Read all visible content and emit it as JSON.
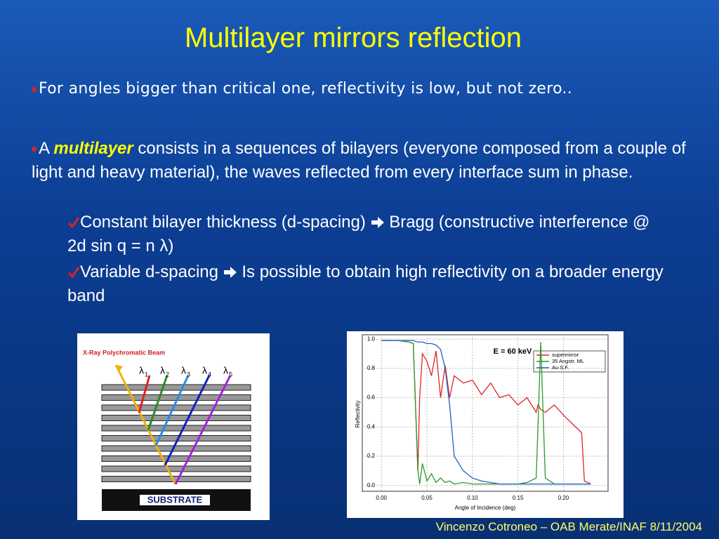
{
  "title": "Multilayer mirrors reflection",
  "bullets": [
    {
      "text": "For angles bigger than critical one, reflectivity is low, but not zero.."
    },
    {
      "parts": [
        "A ",
        "multilayer",
        " consists in a sequences of bilayers (everyone composed from a couple of light and heavy material), the waves reflected from every interface sum in phase."
      ]
    }
  ],
  "sub_bullets": [
    {
      "before": "Constant bilayer thickness (d-spacing)",
      "after": "Bragg (constructive interference @ 2d sin q = n λ)"
    },
    {
      "before": "Variable d-spacing",
      "after": "Is possible to obtain high reflectivity on a broader energy band"
    }
  ],
  "figure_left": {
    "beam_label": "X-Ray  Polychromatic  Beam",
    "wavelength_symbol": "λ",
    "wavelength_indices": [
      "1",
      "2",
      "3",
      "4",
      "5"
    ],
    "substrate_label": "SUBSTRATE"
  },
  "footer": "Vincenzo Cotroneo – OAB Merate/INAF 8/11/2004",
  "chart_data": {
    "type": "line",
    "annotation": "E = 60 keV",
    "x_label": "Angle of Incidence (deg)",
    "y_label": "Reflectivity",
    "xlim": [
      -0.021,
      0.249
    ],
    "ylim": [
      -0.04,
      1.03
    ],
    "xticks": [
      {
        "value": 0,
        "label": "0.00"
      },
      {
        "value": 0.05,
        "label": "0.05"
      },
      {
        "value": 0.1,
        "label": "0.10"
      },
      {
        "value": 0.15,
        "label": "0.15"
      },
      {
        "value": 0.2,
        "label": "0.20"
      }
    ],
    "yticks": [
      {
        "value": 0,
        "label": "0.0"
      },
      {
        "value": 0.2,
        "label": "0.2"
      },
      {
        "value": 0.4,
        "label": "0.4"
      },
      {
        "value": 0.6,
        "label": "0.6"
      },
      {
        "value": 0.8,
        "label": "0.8"
      },
      {
        "value": 1,
        "label": "1.0"
      }
    ],
    "grid": true,
    "x": [
      0,
      0.01,
      0.02,
      0.03,
      0.035,
      0.04,
      0.042,
      0.045,
      0.05,
      0.055,
      0.06,
      0.065,
      0.07,
      0.075,
      0.08,
      0.09,
      0.1,
      0.11,
      0.12,
      0.13,
      0.14,
      0.15,
      0.16,
      0.17,
      0.172,
      0.175,
      0.18,
      0.19,
      0.2,
      0.21,
      0.22,
      0.223,
      0.23
    ],
    "series": [
      {
        "name": "supermirror",
        "color": "#e02424",
        "values": [
          0.99,
          0.99,
          0.99,
          0.98,
          0.97,
          0.1,
          0.6,
          0.9,
          0.85,
          0.75,
          0.92,
          0.6,
          0.82,
          0.6,
          0.75,
          0.7,
          0.72,
          0.62,
          0.7,
          0.6,
          0.62,
          0.55,
          0.6,
          0.5,
          0.55,
          0.52,
          0.5,
          0.55,
          0.48,
          0.42,
          0.36,
          0.03,
          0.01
        ]
      },
      {
        "name": "35 Angstr. ML",
        "color": "#2a9a2a",
        "values": [
          0.99,
          0.99,
          0.99,
          0.98,
          0.97,
          0.1,
          0.01,
          0.15,
          0.03,
          0.08,
          0.02,
          0.05,
          0.02,
          0.03,
          0.01,
          0.02,
          0.01,
          0.01,
          0.01,
          0.01,
          0.01,
          0.01,
          0.02,
          0.05,
          0.4,
          0.98,
          0.05,
          0.01,
          0.01,
          0.01,
          0.01,
          0.01,
          0.01
        ]
      },
      {
        "name": "Au S.F.",
        "color": "#2060c8",
        "values": [
          0.99,
          0.99,
          0.99,
          0.99,
          0.99,
          0.98,
          0.98,
          0.98,
          0.97,
          0.97,
          0.96,
          0.93,
          0.8,
          0.55,
          0.2,
          0.1,
          0.05,
          0.03,
          0.02,
          0.01,
          0.01,
          0.01,
          0.01,
          0.01,
          0.01,
          0.01,
          0.01,
          0.01,
          0.01,
          0.01,
          0.01,
          0.01,
          0.01
        ]
      }
    ]
  }
}
